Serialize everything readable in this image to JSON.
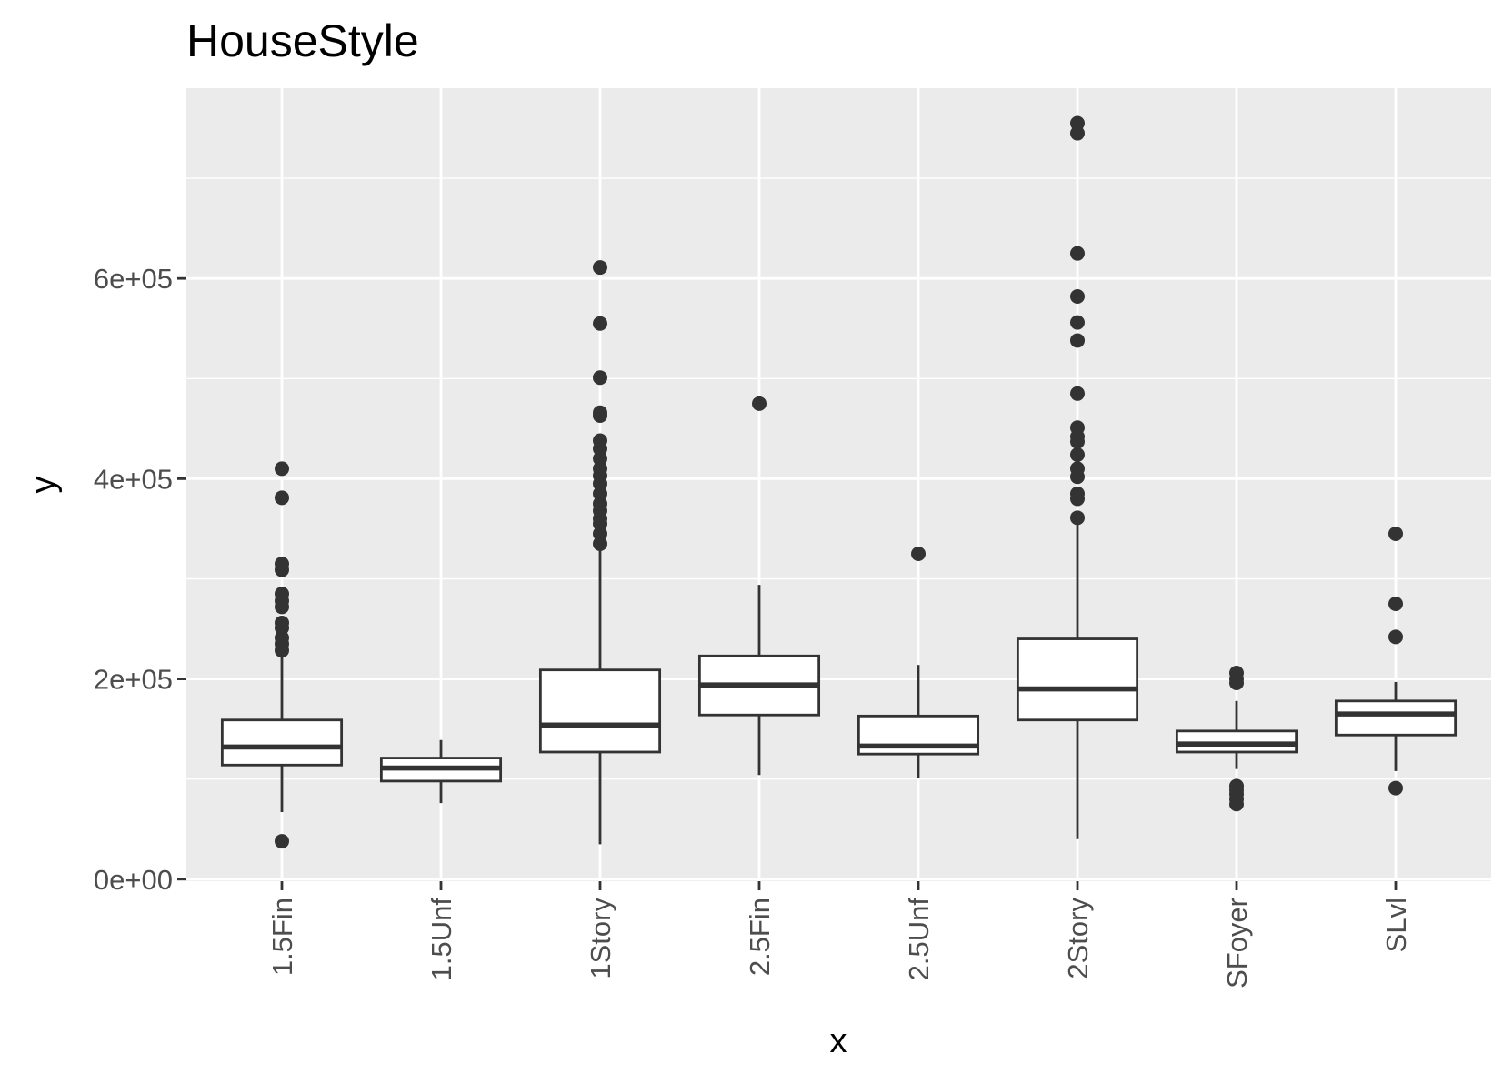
{
  "chart_data": {
    "type": "boxplot",
    "title": "HouseStyle",
    "xlabel": "x",
    "ylabel": "y",
    "ylim": [
      -2000,
      790000
    ],
    "yticks": [
      {
        "value": 0,
        "label": "0e+00"
      },
      {
        "value": 200000,
        "label": "2e+05"
      },
      {
        "value": 400000,
        "label": "4e+05"
      },
      {
        "value": 600000,
        "label": "6e+05"
      }
    ],
    "grid": true,
    "categories": [
      "1.5Fin",
      "1.5Unf",
      "1Story",
      "2.5Fin",
      "2.5Unf",
      "2Story",
      "SFoyer",
      "SLvl"
    ],
    "boxes": [
      {
        "category": "1.5Fin",
        "whisker_low": 67000,
        "q1": 114000,
        "median": 132000,
        "q3": 159000,
        "whisker_high": 228000,
        "outliers": [
          37900,
          228500,
          235000,
          241000,
          251000,
          256000,
          272000,
          278000,
          285000,
          309000,
          315000,
          381000,
          410000
        ]
      },
      {
        "category": "1.5Unf",
        "whisker_low": 76000,
        "q1": 98000,
        "median": 111000,
        "q3": 121000,
        "whisker_high": 139000,
        "outliers": []
      },
      {
        "category": "1Story",
        "whisker_low": 34900,
        "q1": 127000,
        "median": 154000,
        "q3": 209000,
        "whisker_high": 330000,
        "outliers": [
          335000,
          345000,
          355000,
          360000,
          368000,
          375000,
          385000,
          395000,
          403000,
          410000,
          420000,
          430000,
          438000,
          463000,
          466000,
          501000,
          555000,
          611000
        ]
      },
      {
        "category": "2.5Fin",
        "whisker_low": 104000,
        "q1": 164000,
        "median": 194000,
        "q3": 223000,
        "whisker_high": 294000,
        "outliers": [
          475000
        ]
      },
      {
        "category": "2.5Unf",
        "whisker_low": 101000,
        "q1": 125000,
        "median": 133000,
        "q3": 163000,
        "whisker_high": 214000,
        "outliers": [
          325000
        ]
      },
      {
        "category": "2Story",
        "whisker_low": 40000,
        "q1": 159000,
        "median": 190000,
        "q3": 240000,
        "whisker_high": 358000,
        "outliers": [
          361000,
          380000,
          385000,
          402000,
          410000,
          424000,
          437000,
          442000,
          451000,
          485000,
          538000,
          556000,
          582000,
          625000,
          745000,
          755000
        ]
      },
      {
        "category": "SFoyer",
        "whisker_low": 110000,
        "q1": 127000,
        "median": 135000,
        "q3": 148000,
        "whisker_high": 178000,
        "outliers": [
          75000,
          80000,
          85000,
          89000,
          93000,
          196000,
          200000,
          206000
        ]
      },
      {
        "category": "SLvl",
        "whisker_low": 108000,
        "q1": 144000,
        "median": 165000,
        "q3": 178000,
        "whisker_high": 197000,
        "outliers": [
          91000,
          242000,
          275000,
          345000
        ]
      }
    ]
  }
}
